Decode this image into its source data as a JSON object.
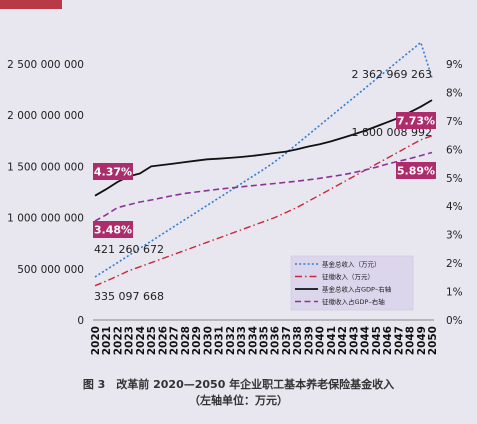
{
  "chart_data": {
    "type": "line",
    "x": [
      2020,
      2021,
      2022,
      2023,
      2024,
      2025,
      2026,
      2027,
      2028,
      2029,
      2030,
      2031,
      2032,
      2033,
      2034,
      2035,
      2036,
      2037,
      2038,
      2039,
      2040,
      2041,
      2042,
      2043,
      2044,
      2045,
      2046,
      2047,
      2048,
      2049,
      2050
    ],
    "y_left_ticks": [
      "0",
      "500 000 000",
      "1 000 000 000",
      "1 500 000 000",
      "2 000 000 000",
      "2 500 000 000"
    ],
    "y_right_ticks": [
      "0%",
      "1%",
      "2%",
      "3%",
      "4%",
      "5%",
      "6%",
      "7%",
      "8%",
      "9%"
    ],
    "ylim_left": [
      0,
      2500000000
    ],
    "ylim_right": [
      0,
      9
    ],
    "series": [
      {
        "name": "基金总收入（万元）",
        "axis": "left",
        "color": "#2f7fd1",
        "style": "dotted",
        "values": [
          421260672,
          490000000,
          560000000,
          630000000,
          700000000,
          770000000,
          840000000,
          910000000,
          980000000,
          1050000000,
          1120000000,
          1190000000,
          1260000000,
          1330000000,
          1400000000,
          1470000000,
          1545000000,
          1630000000,
          1720000000,
          1810000000,
          1900000000,
          1990000000,
          2080000000,
          2170000000,
          2260000000,
          2350000000,
          2440000000,
          2530000000,
          2620000000,
          2710000000,
          2362969263
        ]
      },
      {
        "name": "征缴收入（万元）",
        "axis": "left",
        "color": "#c8283a",
        "style": "dashdot",
        "values": [
          335097668,
          380000000,
          430000000,
          480000000,
          520000000,
          560000000,
          600000000,
          640000000,
          680000000,
          720000000,
          760000000,
          800000000,
          840000000,
          880000000,
          920000000,
          960000000,
          1000000000,
          1050000000,
          1100000000,
          1160000000,
          1220000000,
          1280000000,
          1340000000,
          1400000000,
          1460000000,
          1520000000,
          1580000000,
          1640000000,
          1700000000,
          1760000000,
          1800008992
        ]
      },
      {
        "name": "基金总收入占GDP–右轴",
        "axis": "right",
        "color": "#111111",
        "style": "solid",
        "values": [
          4.37,
          4.6,
          4.85,
          5.05,
          5.15,
          5.4,
          5.45,
          5.5,
          5.55,
          5.6,
          5.65,
          5.67,
          5.7,
          5.73,
          5.77,
          5.82,
          5.87,
          5.92,
          6.0,
          6.1,
          6.18,
          6.28,
          6.4,
          6.52,
          6.65,
          6.8,
          6.95,
          7.1,
          7.3,
          7.5,
          7.73
        ]
      },
      {
        "name": "征缴收入占GDP–右轴",
        "axis": "right",
        "color": "#8a3397",
        "style": "dashed",
        "values": [
          3.48,
          3.7,
          3.95,
          4.05,
          4.15,
          4.22,
          4.3,
          4.38,
          4.45,
          4.5,
          4.55,
          4.6,
          4.64,
          4.68,
          4.72,
          4.76,
          4.8,
          4.84,
          4.88,
          4.93,
          4.98,
          5.04,
          5.1,
          5.18,
          5.27,
          5.37,
          5.48,
          5.58,
          5.67,
          5.78,
          5.89
        ]
      }
    ],
    "annotations": {
      "total_start": "421 260 672",
      "total_end": "2 362 969 263",
      "contrib_start": "335 097 668",
      "contrib_end": "1 800 008 992",
      "gdp_total_start": "4.37%",
      "gdp_total_end": "7.73%",
      "gdp_contrib_start": "3.48%",
      "gdp_contrib_end": "5.89%"
    },
    "legend": [
      "基金总收入（万元）",
      "征缴收入（万元）",
      "基金总收入占GDP–右轴",
      "征缴收入占GDP–右轴"
    ],
    "legend_position": "bottom-right",
    "grid": false
  },
  "caption": {
    "line1": "图 3　改革前 2020—2050 年企业职工基本养老保险基金收入",
    "line2": "（左轴单位：万元）"
  }
}
